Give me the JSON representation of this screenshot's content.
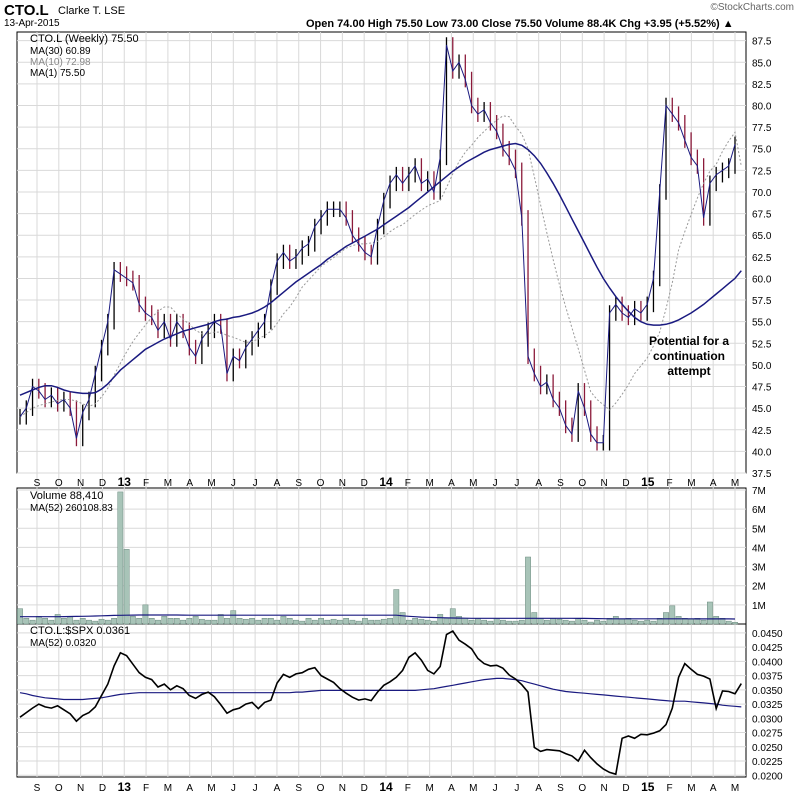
{
  "header": {
    "symbol": "CTO.L",
    "name": "Clarke T.  LSE",
    "date": "13-Apr-2015",
    "stats": "Open 74.00   High 75.50   Low 73.00   Close 75.50   Volume 88.4K   Chg +3.95 (+5.52%) ▲",
    "brand": "©StockCharts.com"
  },
  "colors": {
    "up": "#000000",
    "down": "#8b1a3a",
    "ma30": "#1a1a80",
    "ma10": "#999999",
    "volume_fill": "#a8c4b8",
    "volume_stroke": "#6a8a7e",
    "ratio": "#000000",
    "ratio_ma": "#1a1a80",
    "grid": "#d9d9d9"
  },
  "x_axis": {
    "labels": [
      "S",
      "O",
      "N",
      "D",
      "13",
      "F",
      "M",
      "A",
      "M",
      "J",
      "J",
      "A",
      "S",
      "O",
      "N",
      "D",
      "14",
      "F",
      "M",
      "A",
      "M",
      "J",
      "J",
      "A",
      "S",
      "O",
      "N",
      "D",
      "15",
      "F",
      "M",
      "A",
      "M"
    ],
    "bold_labels": [
      "13",
      "14",
      "15"
    ]
  },
  "chart_data": [
    {
      "type": "line",
      "title": "CTO.L (Weekly) 75.50",
      "legend": [
        "CTO.L (Weekly) 75.50",
        "MA(30) 60.89",
        "MA(10) 72.98",
        "MA(1) 75.50"
      ],
      "ylim": [
        37.5,
        88.5
      ],
      "yticks": [
        "37.5",
        "40.0",
        "42.5",
        "45.0",
        "47.5",
        "50.0",
        "52.5",
        "55.0",
        "57.5",
        "60.0",
        "62.5",
        "65.0",
        "67.5",
        "70.0",
        "72.5",
        "75.0",
        "77.5",
        "80.0",
        "82.5",
        "85.0",
        "87.5"
      ],
      "annotation": "Potential for a continuation attempt",
      "price_weekly": [
        44,
        45,
        47.5,
        47,
        46,
        46.5,
        45.5,
        46,
        45,
        41.5,
        44.5,
        46,
        49,
        52,
        55,
        61,
        60.5,
        60,
        59.5,
        57,
        56,
        55.5,
        54,
        55,
        53,
        55,
        54,
        52,
        51,
        53,
        54,
        55,
        54.5,
        49,
        51,
        50.5,
        52,
        53,
        54,
        55,
        59,
        62,
        63,
        62,
        62.5,
        63.5,
        64,
        66,
        67,
        68,
        68,
        68,
        67,
        65,
        64,
        63,
        62.5,
        66,
        69,
        71,
        72,
        71,
        72,
        73,
        71,
        71.5,
        70,
        74,
        87,
        84,
        85,
        83,
        80,
        79,
        79.5,
        78,
        77,
        75,
        74,
        72.5,
        67,
        51,
        49,
        47.5,
        48,
        46,
        45,
        43,
        42,
        47,
        45,
        42,
        41,
        41,
        56,
        57,
        56,
        55.5,
        56.5,
        56,
        57,
        60,
        70,
        80,
        79,
        78,
        76,
        74,
        73,
        67,
        71,
        72,
        72.5,
        73,
        75.5
      ],
      "ma30_weekly": [
        46.5,
        46.8,
        47.1,
        47.4,
        47.6,
        47.6,
        47.4,
        47.1,
        46.9,
        46.8,
        46.7,
        46.7,
        46.8,
        47.2,
        47.8,
        48.6,
        49.4,
        50,
        50.6,
        51.2,
        51.8,
        52.2,
        52.6,
        53,
        53.3,
        53.6,
        53.9,
        54.1,
        54.3,
        54.5,
        54.7,
        55,
        55.2,
        55.3,
        55.5,
        55.6,
        55.8,
        56,
        56.3,
        56.7,
        57.2,
        57.8,
        58.4,
        59,
        59.6,
        60.1,
        60.6,
        61.1,
        61.6,
        62.2,
        62.7,
        63.2,
        63.7,
        64.1,
        64.5,
        64.9,
        65.3,
        65.7,
        66.2,
        66.7,
        67.2,
        67.7,
        68.2,
        68.8,
        69.4,
        70,
        70.6,
        71.2,
        71.8,
        72.4,
        72.9,
        73.4,
        73.8,
        74.2,
        74.6,
        74.9,
        75.1,
        75.3,
        75.5,
        75.6,
        75.4,
        74.9,
        74.2,
        73.3,
        72.2,
        71,
        69.7,
        68.3,
        66.9,
        65.5,
        64.1,
        62.7,
        61.3,
        60,
        58.9,
        57.9,
        57,
        56.2,
        55.5,
        55,
        54.7,
        54.6,
        54.6,
        54.7,
        54.9,
        55.2,
        55.6,
        56,
        56.5,
        57,
        57.6,
        58.2,
        58.8,
        59.4,
        60,
        60.89
      ],
      "ma10_weekly": [
        44,
        44.5,
        45,
        45.3,
        45.5,
        45.7,
        45.9,
        46,
        46,
        45.8,
        45.5,
        45.2,
        45.5,
        46.3,
        47.3,
        48.8,
        50.2,
        51.5,
        52.7,
        53.7,
        54.6,
        55.5,
        56.2,
        56.7,
        56.7,
        55.9,
        55.3,
        54.7,
        54,
        53.6,
        53.6,
        53.8,
        53.8,
        53.4,
        53.2,
        52.9,
        52.6,
        52.7,
        53,
        53.4,
        53.9,
        54.8,
        55.9,
        56.7,
        57.8,
        59,
        59.8,
        60.6,
        61.4,
        61.9,
        62.4,
        63,
        63.5,
        63.8,
        64,
        64,
        64.1,
        64.3,
        64.8,
        65.4,
        65.9,
        66.2,
        66.8,
        67.4,
        67.9,
        68.4,
        68.7,
        69,
        70.5,
        72.1,
        73.5,
        74.6,
        75.4,
        76.3,
        77,
        77.7,
        78.3,
        78.8,
        78.7,
        77.6,
        76.7,
        75,
        71.8,
        68.5,
        65.3,
        62.2,
        59.3,
        56.7,
        54.3,
        51.9,
        49.4,
        46.9,
        46,
        45.4,
        44.8,
        45.6,
        46.6,
        47.7,
        49,
        49.9,
        50.8,
        52.2,
        53.8,
        56.5,
        59.5,
        63.3,
        65.4,
        67.4,
        69.3,
        71,
        72.4,
        73.2,
        74.7,
        75.9,
        76.9,
        72.98
      ]
    },
    {
      "type": "bar",
      "title": "Volume 88,410",
      "legend": [
        "Volume 88,410",
        "MA(52) 260108.83"
      ],
      "ylim": [
        0,
        7000000
      ],
      "yticks": [
        "1M",
        "2M",
        "3M",
        "4M",
        "5M",
        "6M",
        "7M"
      ],
      "values_weekly": [
        800000,
        300000,
        200000,
        400000,
        300000,
        200000,
        500000,
        300000,
        400000,
        200000,
        300000,
        200000,
        150000,
        250000,
        200000,
        300000,
        6900000,
        3900000,
        400000,
        300000,
        1000000,
        300000,
        200000,
        400000,
        300000,
        300000,
        200000,
        300000,
        400000,
        250000,
        200000,
        200000,
        500000,
        300000,
        700000,
        300000,
        250000,
        300000,
        200000,
        300000,
        300000,
        200000,
        400000,
        300000,
        200000,
        150000,
        300000,
        200000,
        300000,
        200000,
        250000,
        200000,
        300000,
        200000,
        150000,
        300000,
        200000,
        200000,
        250000,
        300000,
        1800000,
        600000,
        200000,
        300000,
        250000,
        200000,
        150000,
        500000,
        300000,
        800000,
        400000,
        300000,
        200000,
        300000,
        200000,
        150000,
        300000,
        200000,
        150000,
        150000,
        200000,
        3500000,
        600000,
        300000,
        200000,
        300000,
        250000,
        200000,
        150000,
        300000,
        200000,
        100000,
        200000,
        150000,
        300000,
        400000,
        250000,
        300000,
        200000,
        150000,
        200000,
        150000,
        300000,
        600000,
        950000,
        400000,
        300000,
        250000,
        300000,
        200000,
        1150000,
        400000,
        300000,
        150000,
        88410
      ],
      "ma52_weekly": [
        380000,
        380000,
        380000,
        380000,
        380000,
        380000,
        380000,
        385000,
        390000,
        395000,
        400000,
        410000,
        420000,
        430000,
        440000,
        450000,
        455000,
        460000,
        465000,
        470000,
        470000,
        470000,
        470000,
        470000,
        470000,
        470000,
        465000,
        460000,
        460000,
        460000,
        460000,
        460000,
        460000,
        460000,
        460000,
        460000,
        460000,
        460000,
        460000,
        460000,
        460000,
        460000,
        460000,
        460000,
        460000,
        460000,
        460000,
        460000,
        460000,
        460000,
        460000,
        460000,
        460000,
        460000,
        460000,
        460000,
        460000,
        460000,
        460000,
        460000,
        460000,
        430000,
        400000,
        380000,
        360000,
        350000,
        340000,
        330000,
        320000,
        315000,
        310000,
        305000,
        300000,
        300000,
        300000,
        300000,
        300000,
        300000,
        300000,
        300000,
        300000,
        300000,
        300000,
        300000,
        300000,
        300000,
        300000,
        300000,
        300000,
        295000,
        290000,
        285000,
        280000,
        275000,
        270000,
        270000,
        270000,
        270000,
        270000,
        270000,
        270000,
        270000,
        270000,
        270000,
        270000,
        270000,
        270000,
        270000,
        265000,
        265000,
        265000,
        265000,
        265000,
        265000,
        260108.83
      ]
    },
    {
      "type": "line",
      "title": "CTO.L:$SPX 0.0361",
      "legend": [
        "CTO.L:$SPX 0.0361",
        "MA(52) 0.0320"
      ],
      "ylim": [
        0.0197,
        0.0462
      ],
      "yticks": [
        "0.0200",
        "0.0225",
        "0.0250",
        "0.0275",
        "0.0300",
        "0.0325",
        "0.0350",
        "0.0375",
        "0.0400",
        "0.0425",
        "0.0450"
      ],
      "ratio_weekly": [
        0.0302,
        0.031,
        0.0318,
        0.0325,
        0.032,
        0.0318,
        0.0322,
        0.0315,
        0.0308,
        0.0295,
        0.0305,
        0.031,
        0.032,
        0.034,
        0.036,
        0.0392,
        0.0415,
        0.041,
        0.0395,
        0.038,
        0.0372,
        0.0368,
        0.0355,
        0.036,
        0.035,
        0.0357,
        0.0352,
        0.034,
        0.0335,
        0.0342,
        0.0346,
        0.0338,
        0.0324,
        0.0309,
        0.0315,
        0.0318,
        0.0325,
        0.0328,
        0.0317,
        0.0328,
        0.0332,
        0.0362,
        0.0377,
        0.0372,
        0.0378,
        0.038,
        0.0386,
        0.0389,
        0.0375,
        0.0369,
        0.0363,
        0.0352,
        0.0344,
        0.0337,
        0.0332,
        0.0334,
        0.0331,
        0.0346,
        0.0358,
        0.0364,
        0.0372,
        0.0384,
        0.0407,
        0.0415,
        0.0402,
        0.0384,
        0.0378,
        0.0391,
        0.0447,
        0.0453,
        0.0437,
        0.043,
        0.0422,
        0.0405,
        0.0396,
        0.0392,
        0.0393,
        0.0388,
        0.0376,
        0.0369,
        0.0359,
        0.0346,
        0.0249,
        0.0242,
        0.0245,
        0.0244,
        0.0243,
        0.0238,
        0.0234,
        0.0225,
        0.0244,
        0.0231,
        0.022,
        0.0211,
        0.0205,
        0.0202,
        0.0265,
        0.0269,
        0.0265,
        0.0272,
        0.0271,
        0.0274,
        0.0278,
        0.0289,
        0.0318,
        0.0372,
        0.0396,
        0.0386,
        0.0377,
        0.0374,
        0.0369,
        0.0317,
        0.0348,
        0.0347,
        0.0343,
        0.0361
      ],
      "ma52_weekly": [
        0.0345,
        0.0343,
        0.034,
        0.0338,
        0.0336,
        0.0335,
        0.0334,
        0.0333,
        0.0333,
        0.0333,
        0.0333,
        0.0334,
        0.0335,
        0.0336,
        0.0338,
        0.034,
        0.0342,
        0.0343,
        0.0344,
        0.0345,
        0.0345,
        0.0345,
        0.0345,
        0.0345,
        0.0345,
        0.0345,
        0.0345,
        0.0345,
        0.0345,
        0.0345,
        0.0345,
        0.0345,
        0.0345,
        0.0345,
        0.0345,
        0.0345,
        0.0345,
        0.0345,
        0.0345,
        0.0345,
        0.0345,
        0.0345,
        0.0345,
        0.0345,
        0.0346,
        0.0346,
        0.0347,
        0.0348,
        0.0349,
        0.0349,
        0.0349,
        0.0349,
        0.0349,
        0.0349,
        0.0349,
        0.0349,
        0.0349,
        0.0349,
        0.0349,
        0.0349,
        0.0349,
        0.0349,
        0.0349,
        0.0349,
        0.035,
        0.0351,
        0.0352,
        0.0354,
        0.0356,
        0.0358,
        0.036,
        0.0362,
        0.0364,
        0.0366,
        0.0368,
        0.0369,
        0.037,
        0.037,
        0.0369,
        0.0368,
        0.0366,
        0.0363,
        0.036,
        0.0357,
        0.0354,
        0.0351,
        0.0349,
        0.0347,
        0.0346,
        0.0345,
        0.0344,
        0.0343,
        0.0342,
        0.0341,
        0.034,
        0.0339,
        0.0338,
        0.0337,
        0.0336,
        0.0335,
        0.0334,
        0.0333,
        0.0332,
        0.0331,
        0.033,
        0.033,
        0.033,
        0.0329,
        0.0328,
        0.0327,
        0.0326,
        0.0325,
        0.0323,
        0.0322,
        0.0321,
        0.032
      ]
    }
  ]
}
